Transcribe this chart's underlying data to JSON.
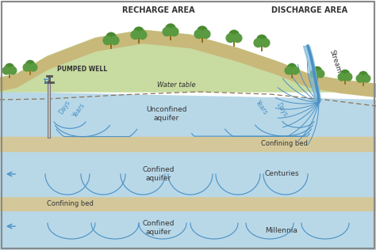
{
  "bg_color": "#f5f5f0",
  "title": "",
  "recharge_label": "RECHARGE AREA",
  "discharge_label": "DISCHARGE AREA",
  "pumped_well_label": "PUMPED WELL",
  "water_table_label": "Water table",
  "stream_label": "Stream",
  "unconfined_label": "Unconfined\naquifer",
  "confined1_label": "Confined\naquifer",
  "confined2_label": "Confined\naquifer",
  "confining1_label": "Confining bed",
  "confining2_label": "Confining bed",
  "days_label_1": "Days",
  "days_label_2": "Years",
  "days_label_3": "Years",
  "days_label_4": "Days",
  "centuries_label": "Centuries",
  "millennia_label": "Millennia",
  "ground_color": "#c8b87a",
  "hill_color": "#c8dba0",
  "aquifer_color": "#b8d8e8",
  "confining_color": "#d4c89a",
  "water_line_color": "#4a90c4",
  "border_color": "#888888",
  "text_color": "#333333",
  "arrow_color": "#4a90c4",
  "tree_trunk_color": "#8B6914",
  "tree_dark_color": "#4a8a30",
  "tree_light_color": "#5a9a40"
}
